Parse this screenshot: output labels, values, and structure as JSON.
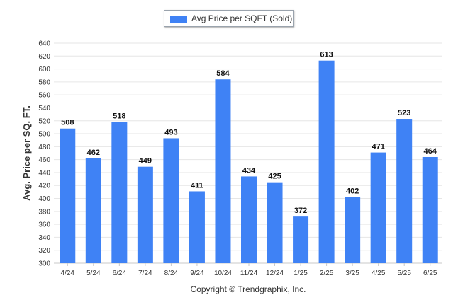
{
  "legend": {
    "label": "Avg Price per SQFT (Sold)"
  },
  "footer": {
    "copyright": "Copyright © Trendgraphix, Inc."
  },
  "colors": {
    "bar": "#3f82f5",
    "grid": "#e6e6e6"
  },
  "chart_data": {
    "type": "bar",
    "categories": [
      "4/24",
      "5/24",
      "6/24",
      "7/24",
      "8/24",
      "9/24",
      "10/24",
      "11/24",
      "12/24",
      "1/25",
      "2/25",
      "3/25",
      "4/25",
      "5/25",
      "6/25"
    ],
    "series": [
      {
        "name": "Avg Price per SQFT (Sold)",
        "values": [
          508,
          462,
          518,
          449,
          493,
          411,
          584,
          434,
          425,
          372,
          613,
          402,
          471,
          523,
          464
        ]
      }
    ],
    "xlabel": "",
    "ylabel": "Avg. Price per SQ. FT.",
    "ylim": [
      300,
      640
    ],
    "yticks": [
      300,
      320,
      340,
      360,
      380,
      400,
      420,
      440,
      460,
      480,
      500,
      520,
      540,
      560,
      580,
      600,
      620,
      640
    ],
    "grid": true,
    "data_labels": true,
    "legend_position": "top"
  }
}
